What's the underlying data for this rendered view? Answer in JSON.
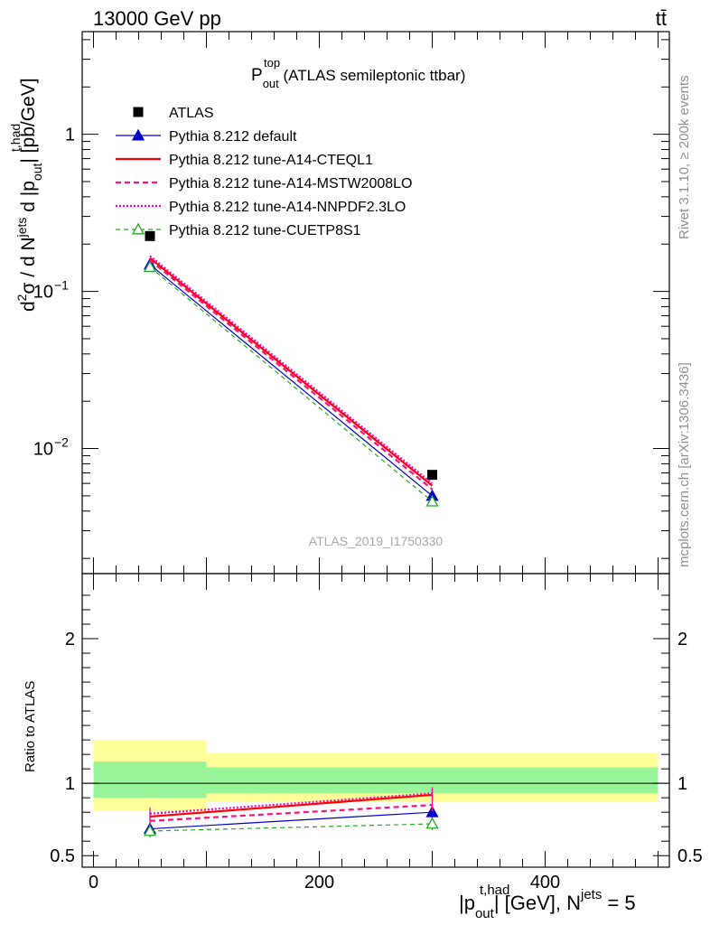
{
  "header": {
    "left": "13000 GeV pp",
    "right": "tt̄"
  },
  "chart_title": {
    "main": "P",
    "sup": "top",
    "sub": "out",
    "rest": " (ATLAS semileptonic ttbar)"
  },
  "side_text": {
    "rivet": "Rivet 3.1.10, ≥ 200k events",
    "mcplots": "mcplots.cern.ch [arXiv:1306.3436]"
  },
  "watermark": "ATLAS_2019_I1750330",
  "y_axis_main": {
    "prefix": "d",
    "sup1": "2",
    "sigma": "σ / d N",
    "sup2": "jets",
    "mid": " d |p",
    "sub3": "out",
    "sup3": "t,had",
    "suffix": "| [pb/GeV]"
  },
  "y_axis_ratio": "Ratio to ATLAS",
  "x_axis": {
    "prefix": "|p",
    "sub": "out",
    "sup": "t,had",
    "mid": "| [GeV], N",
    "sup2": "jets",
    "suffix": " = 5"
  },
  "legend": [
    {
      "label": "ATLAS"
    },
    {
      "label": "Pythia 8.212 default"
    },
    {
      "label": "Pythia 8.212 tune-A14-CTEQL1"
    },
    {
      "label": "Pythia 8.212 tune-A14-MSTW2008LO"
    },
    {
      "label": "Pythia 8.212 tune-A14-NNPDF2.3LO"
    },
    {
      "label": "Pythia 8.212 tune-CUETP8S1"
    }
  ],
  "chart_data": {
    "type": "line",
    "x_scale": "linear",
    "y_scale": "log",
    "xlim": [
      -10,
      510
    ],
    "ylim": [
      0.0016,
      4.5
    ],
    "x_ticks": [
      "0",
      "200",
      "400"
    ],
    "y_ticks": [
      {
        "label": "1",
        "value": 1
      },
      {
        "label": "10",
        "exp": "−1",
        "value": 0.1
      },
      {
        "label": "10",
        "exp": "−2",
        "value": 0.01
      }
    ],
    "bins": [
      [
        0,
        100
      ],
      [
        100,
        500
      ]
    ],
    "x": [
      50,
      300
    ],
    "data": {
      "name": "ATLAS",
      "y": [
        0.225,
        0.0068
      ],
      "color": "#000000"
    },
    "series": [
      {
        "name": "Pythia 8.212 default",
        "y": [
          0.148,
          0.005
        ],
        "ratio": [
          0.685,
          0.8
        ],
        "color": "#0000cc",
        "dash": "",
        "width": 1.2,
        "marker": "triangle"
      },
      {
        "name": "Pythia 8.212 tune-A14-CTEQL1",
        "y": [
          0.163,
          0.0058
        ],
        "ratio": [
          0.77,
          0.92
        ],
        "color": "#ff0000",
        "dash": "",
        "width": 2.2,
        "marker": "none"
      },
      {
        "name": "Pythia 8.212 tune-A14-MSTW2008LO",
        "y": [
          0.158,
          0.0055
        ],
        "ratio": [
          0.74,
          0.85
        ],
        "color": "#ff1080",
        "dash": "6,4",
        "width": 2.2,
        "marker": "none"
      },
      {
        "name": "Pythia 8.212 tune-A14-NNPDF2.3LO",
        "y": [
          0.168,
          0.006
        ],
        "ratio": [
          0.79,
          0.93
        ],
        "color": "#ff00c0",
        "dash": "2,2",
        "width": 2.2,
        "marker": "none"
      },
      {
        "name": "Pythia 8.212 tune-CUETP8S1",
        "y": [
          0.143,
          0.0046
        ],
        "ratio": [
          0.67,
          0.72
        ],
        "color": "#22aa22",
        "dash": "5,4",
        "width": 1.2,
        "marker": "open-triangle"
      }
    ],
    "ratio": {
      "ylim": [
        0.42,
        2.45
      ],
      "y_ticks": [
        "0.5",
        "1",
        "2"
      ],
      "y_tick_values": [
        0.5,
        1,
        2
      ],
      "bands_inner": [
        {
          "x": [
            0,
            100
          ],
          "y": [
            0.9,
            1.15
          ]
        },
        {
          "x": [
            100,
            500
          ],
          "y": [
            0.93,
            1.11
          ]
        }
      ],
      "bands_outer": [
        {
          "x": [
            0,
            100
          ],
          "y": [
            0.81,
            1.3
          ]
        },
        {
          "x": [
            100,
            500
          ],
          "y": [
            0.87,
            1.21
          ]
        }
      ],
      "inner_color": "#99f599",
      "outer_color": "#ffff99"
    }
  }
}
